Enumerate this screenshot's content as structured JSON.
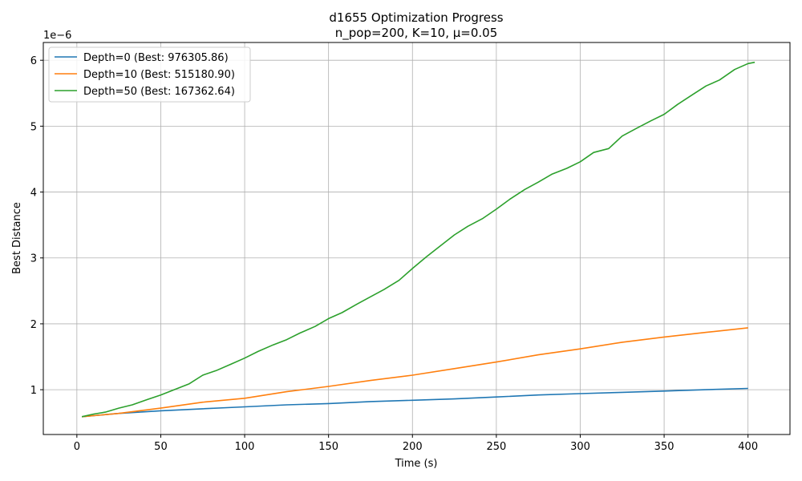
{
  "chart_data": {
    "type": "line",
    "title": "d1655 Optimization Progress",
    "subtitle": "n_pop=200, K=10, μ=0.05",
    "xlabel": "Time (s)",
    "ylabel": "Best Distance",
    "y_offset_text": "1e−6",
    "xlim": [
      -20,
      425
    ],
    "ylim": [
      0.32,
      6.27
    ],
    "x_ticks": [
      0,
      50,
      100,
      150,
      200,
      250,
      300,
      350,
      400
    ],
    "y_ticks": [
      1,
      2,
      3,
      4,
      5,
      6
    ],
    "grid": true,
    "legend_position": "upper-left",
    "series": [
      {
        "name": "Depth=0 (Best: 976305.86)",
        "color": "#1f77b4",
        "points": [
          [
            3,
            0.59
          ],
          [
            25,
            0.64
          ],
          [
            50,
            0.68
          ],
          [
            75,
            0.71
          ],
          [
            100,
            0.74
          ],
          [
            125,
            0.77
          ],
          [
            150,
            0.79
          ],
          [
            175,
            0.82
          ],
          [
            200,
            0.84
          ],
          [
            225,
            0.86
          ],
          [
            250,
            0.89
          ],
          [
            275,
            0.92
          ],
          [
            300,
            0.94
          ],
          [
            325,
            0.96
          ],
          [
            350,
            0.98
          ],
          [
            375,
            1.0
          ],
          [
            400,
            1.02
          ]
        ]
      },
      {
        "name": "Depth=10 (Best: 515180.90)",
        "color": "#ff7f0e",
        "points": [
          [
            3,
            0.59
          ],
          [
            25,
            0.64
          ],
          [
            50,
            0.72
          ],
          [
            75,
            0.81
          ],
          [
            100,
            0.87
          ],
          [
            125,
            0.97
          ],
          [
            150,
            1.05
          ],
          [
            175,
            1.14
          ],
          [
            200,
            1.22
          ],
          [
            225,
            1.32
          ],
          [
            250,
            1.42
          ],
          [
            275,
            1.53
          ],
          [
            300,
            1.62
          ],
          [
            325,
            1.72
          ],
          [
            350,
            1.8
          ],
          [
            375,
            1.87
          ],
          [
            400,
            1.94
          ]
        ]
      },
      {
        "name": "Depth=50 (Best: 167362.64)",
        "color": "#2ca02c",
        "points": [
          [
            3,
            0.59
          ],
          [
            10,
            0.63
          ],
          [
            17,
            0.66
          ],
          [
            25,
            0.72
          ],
          [
            33,
            0.77
          ],
          [
            42,
            0.85
          ],
          [
            50,
            0.92
          ],
          [
            58,
            1.0
          ],
          [
            67,
            1.09
          ],
          [
            75,
            1.22
          ],
          [
            83,
            1.29
          ],
          [
            92,
            1.39
          ],
          [
            100,
            1.48
          ],
          [
            108,
            1.58
          ],
          [
            117,
            1.68
          ],
          [
            125,
            1.76
          ],
          [
            133,
            1.86
          ],
          [
            142,
            1.96
          ],
          [
            150,
            2.08
          ],
          [
            158,
            2.17
          ],
          [
            167,
            2.3
          ],
          [
            175,
            2.41
          ],
          [
            183,
            2.52
          ],
          [
            192,
            2.66
          ],
          [
            200,
            2.84
          ],
          [
            208,
            3.01
          ],
          [
            217,
            3.19
          ],
          [
            225,
            3.35
          ],
          [
            233,
            3.48
          ],
          [
            242,
            3.6
          ],
          [
            250,
            3.74
          ],
          [
            258,
            3.89
          ],
          [
            267,
            4.04
          ],
          [
            275,
            4.15
          ],
          [
            283,
            4.27
          ],
          [
            292,
            4.36
          ],
          [
            300,
            4.46
          ],
          [
            308,
            4.6
          ],
          [
            317,
            4.66
          ],
          [
            325,
            4.85
          ],
          [
            333,
            4.96
          ],
          [
            342,
            5.08
          ],
          [
            350,
            5.18
          ],
          [
            358,
            5.33
          ],
          [
            367,
            5.48
          ],
          [
            375,
            5.61
          ],
          [
            383,
            5.7
          ],
          [
            392,
            5.86
          ],
          [
            400,
            5.95
          ],
          [
            404,
            5.97
          ]
        ]
      }
    ]
  }
}
